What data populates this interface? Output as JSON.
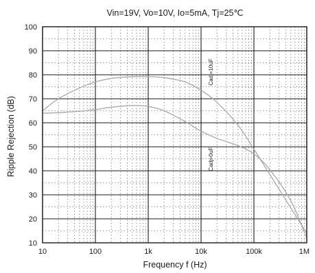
{
  "chart_data": {
    "type": "line",
    "title": "Vin=19V, Vo=10V, Io=5mA, Tj=25℃",
    "xlabel": "Frequency f (Hz)",
    "ylabel": "Ripple Rejection (dB)",
    "xscale": "log",
    "xlim": [
      10,
      1000000
    ],
    "ylim": [
      10,
      100
    ],
    "xticks": [
      10,
      100,
      1000,
      10000,
      100000,
      1000000
    ],
    "xtick_labels": [
      "10",
      "100",
      "1k",
      "10k",
      "100k",
      "1M"
    ],
    "yticks": [
      10,
      20,
      30,
      40,
      50,
      60,
      70,
      80,
      90,
      100
    ],
    "ytick_labels": [
      "10",
      "20",
      "30",
      "40",
      "50",
      "60",
      "70",
      "80",
      "90",
      "100"
    ],
    "grid": true,
    "series": [
      {
        "name": "Cadj=10uF",
        "color": "#a8a8a8",
        "x": [
          10,
          20,
          50,
          100,
          200,
          500,
          1000,
          2000,
          5000,
          10000,
          20000,
          50000,
          100000,
          200000,
          500000,
          1000000
        ],
        "y": [
          65,
          70,
          74.5,
          77,
          78.5,
          79.2,
          79.2,
          78.8,
          77,
          73.5,
          68.5,
          59,
          49,
          38.5,
          24.5,
          14
        ]
      },
      {
        "name": "Cadj=0uF",
        "color": "#a8a8a8",
        "x": [
          10,
          20,
          50,
          100,
          200,
          500,
          1000,
          2000,
          5000,
          10000,
          20000,
          50000,
          100000,
          200000,
          500000,
          1000000
        ],
        "y": [
          64,
          64.2,
          64.8,
          65.5,
          66.5,
          67.2,
          66.8,
          65,
          60.5,
          56.5,
          53.5,
          50.5,
          47,
          40.5,
          27.5,
          12
        ]
      }
    ]
  }
}
